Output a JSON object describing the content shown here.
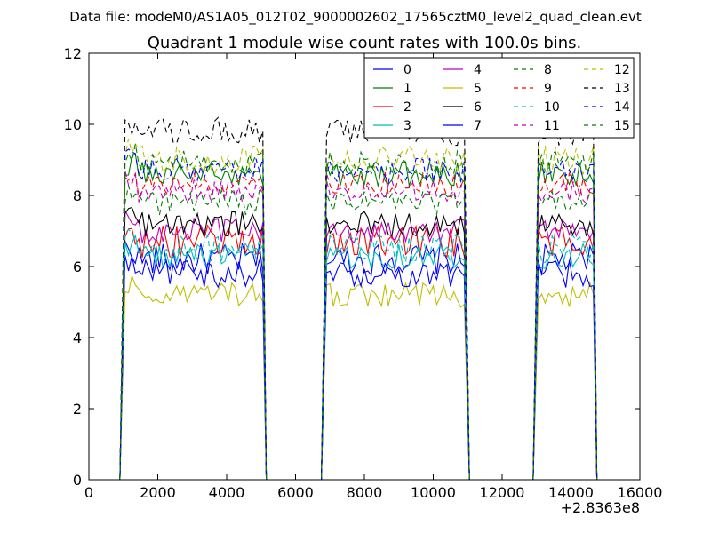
{
  "suptitle": "Data file: modeM0/AS1A05_012T02_9000002602_17565cztM0_level2_quad_clean.evt",
  "chart_data": {
    "type": "line",
    "title": "Quadrant 1 module wise count rates with 100.0s bins.",
    "xlabel": "",
    "ylabel": "",
    "xlim": [
      0,
      16000
    ],
    "ylim": [
      0,
      12
    ],
    "x_ticks": [
      0,
      2000,
      4000,
      6000,
      8000,
      10000,
      12000,
      14000,
      16000
    ],
    "x_tick_labels": [
      "0",
      "2000",
      "4000",
      "6000",
      "8000",
      "10000",
      "12000",
      "14000",
      "16000"
    ],
    "y_ticks": [
      0,
      2,
      4,
      6,
      8,
      10,
      12
    ],
    "y_tick_labels": [
      "0",
      "2",
      "4",
      "6",
      "8",
      "10",
      "12"
    ],
    "x_offset_label": "+2.8363e8",
    "legend_position": "top-right",
    "legend_columns": 4,
    "segments": [
      [
        1050,
        5050
      ],
      [
        6900,
        10950
      ],
      [
        13050,
        14650
      ]
    ],
    "series": [
      {
        "name": "0",
        "color": "#0000ff",
        "dash": "solid",
        "level": 6.2,
        "amp": 0.45
      },
      {
        "name": "1",
        "color": "#008000",
        "dash": "solid",
        "level": 8.6,
        "amp": 0.35
      },
      {
        "name": "2",
        "color": "#ff0000",
        "dash": "solid",
        "level": 6.7,
        "amp": 0.45
      },
      {
        "name": "3",
        "color": "#00bfbf",
        "dash": "solid",
        "level": 6.3,
        "amp": 0.35
      },
      {
        "name": "4",
        "color": "#bf00bf",
        "dash": "solid",
        "level": 7.0,
        "amp": 0.35
      },
      {
        "name": "5",
        "color": "#bfbf00",
        "dash": "solid",
        "level": 5.2,
        "amp": 0.35
      },
      {
        "name": "6",
        "color": "#000000",
        "dash": "solid",
        "level": 7.2,
        "amp": 0.35
      },
      {
        "name": "7",
        "color": "#0000ff",
        "dash": "solid",
        "level": 5.8,
        "amp": 0.4
      },
      {
        "name": "8",
        "color": "#008000",
        "dash": "dashed",
        "level": 7.8,
        "amp": 0.35
      },
      {
        "name": "9",
        "color": "#ff0000",
        "dash": "dashed",
        "level": 8.3,
        "amp": 0.35
      },
      {
        "name": "10",
        "color": "#00bfbf",
        "dash": "dashed",
        "level": 6.5,
        "amp": 0.4
      },
      {
        "name": "11",
        "color": "#bf00bf",
        "dash": "dashed",
        "level": 8.1,
        "amp": 0.35
      },
      {
        "name": "12",
        "color": "#bfbf00",
        "dash": "dashed",
        "level": 9.0,
        "amp": 0.4
      },
      {
        "name": "13",
        "color": "#000000",
        "dash": "dashed",
        "level": 9.8,
        "amp": 0.4
      },
      {
        "name": "14",
        "color": "#0000ff",
        "dash": "dashed",
        "level": 8.7,
        "amp": 0.35
      },
      {
        "name": "15",
        "color": "#008000",
        "dash": "dashed",
        "level": 8.9,
        "amp": 0.35
      }
    ]
  }
}
